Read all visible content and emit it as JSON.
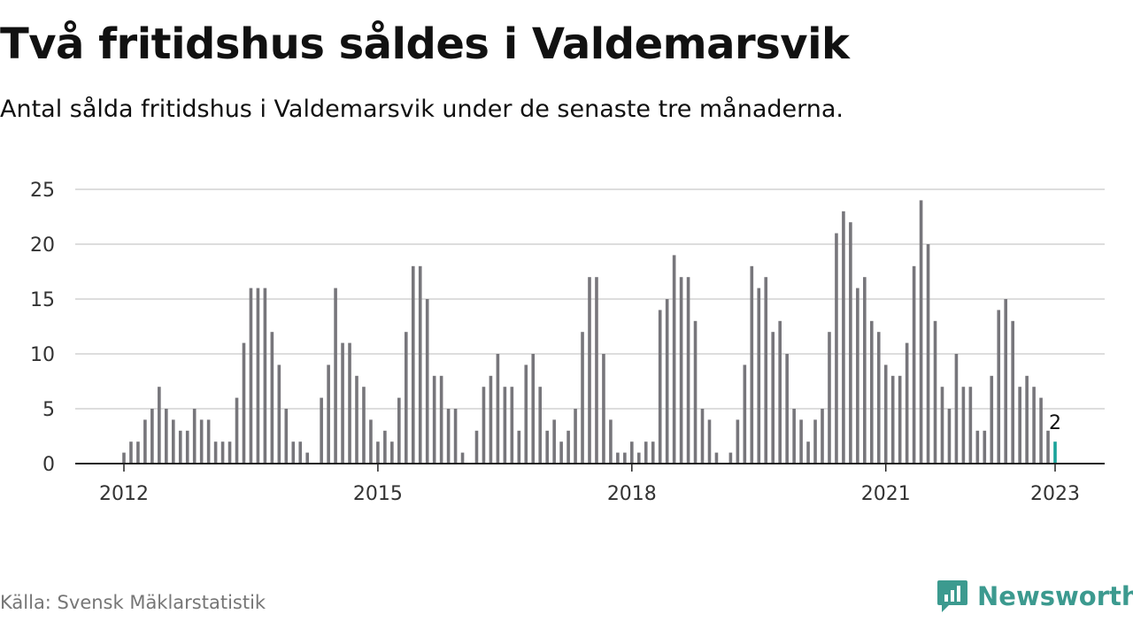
{
  "header": {
    "title": "Två fritidshus såldes i Valdemarsvik",
    "subtitle": "Antal sålda fritidshus i Valdemarsvik under de senaste tre månaderna."
  },
  "footer": {
    "source": "Källa: Svensk Mäklarstatistik",
    "brand": "Newsworthy",
    "brand_icon": "newsworthy-logo-icon"
  },
  "colors": {
    "bar": "#77767b",
    "highlight": "#1aa39a",
    "grid": "#dddddd",
    "axis": "#222222",
    "brand": "#3c9a8f"
  },
  "chart_data": {
    "type": "bar",
    "title": "",
    "xlabel": "",
    "ylabel": "",
    "x_start": "2012-01",
    "x_end": "2023-01",
    "interval": "monthly",
    "ylim": [
      0,
      25
    ],
    "yticks": [
      0,
      5,
      10,
      15,
      20,
      25
    ],
    "xticks": [
      "2012",
      "2015",
      "2018",
      "2021",
      "2023"
    ],
    "grid": true,
    "highlight_last": true,
    "last_value_label": "2",
    "values": [
      1,
      2,
      2,
      4,
      5,
      7,
      5,
      4,
      3,
      3,
      5,
      4,
      4,
      2,
      2,
      2,
      6,
      11,
      16,
      16,
      16,
      12,
      9,
      5,
      2,
      2,
      1,
      0,
      6,
      9,
      16,
      11,
      11,
      8,
      7,
      4,
      2,
      3,
      2,
      6,
      12,
      18,
      18,
      15,
      8,
      8,
      5,
      5,
      1,
      0,
      3,
      7,
      8,
      10,
      7,
      7,
      3,
      9,
      10,
      7,
      3,
      4,
      2,
      3,
      5,
      12,
      17,
      17,
      10,
      4,
      1,
      1,
      2,
      1,
      2,
      2,
      14,
      15,
      19,
      17,
      17,
      13,
      5,
      4,
      1,
      0,
      1,
      4,
      9,
      18,
      16,
      17,
      12,
      13,
      10,
      5,
      4,
      2,
      4,
      5,
      12,
      21,
      23,
      22,
      16,
      17,
      13,
      12,
      9,
      8,
      8,
      11,
      18,
      24,
      20,
      13,
      7,
      5,
      10,
      7,
      7,
      3,
      3,
      8,
      14,
      15,
      13,
      7,
      8,
      7,
      6,
      3,
      2
    ]
  }
}
